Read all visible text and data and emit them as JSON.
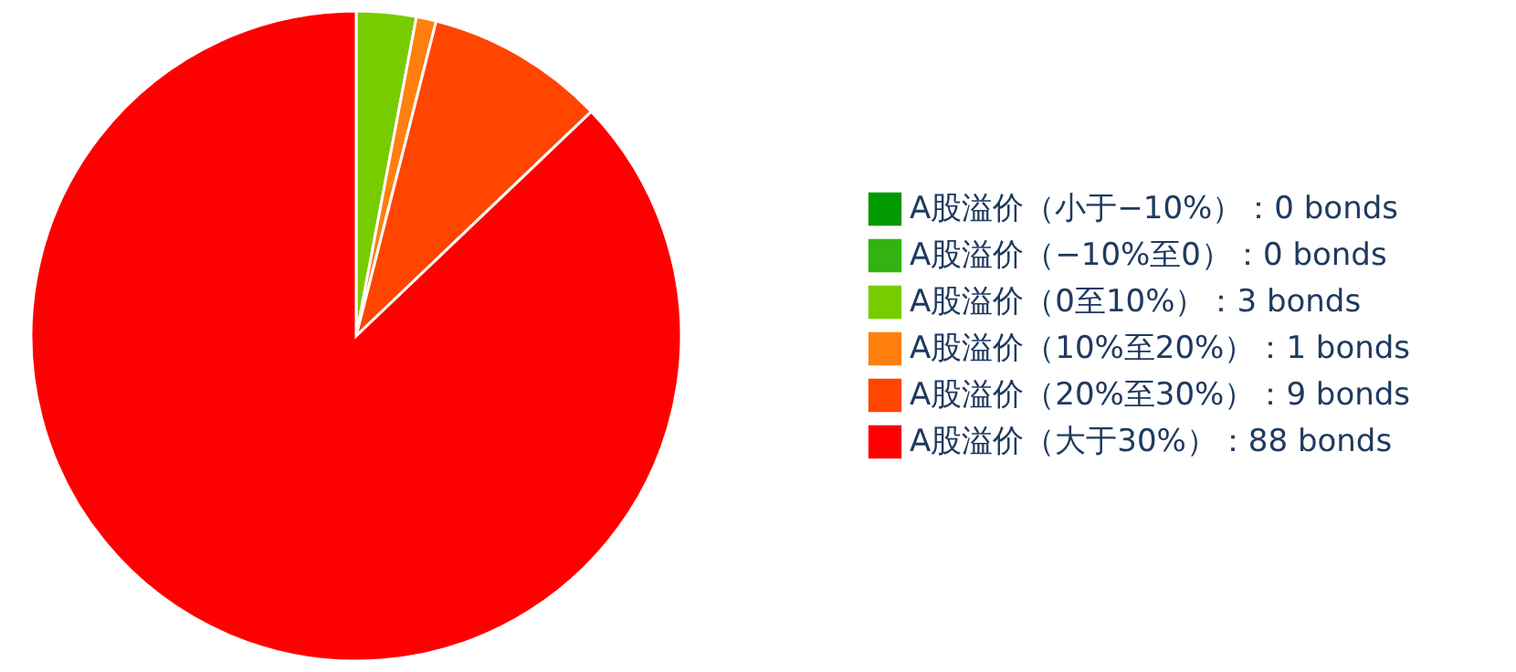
{
  "chart_data": {
    "type": "pie",
    "legend": "right",
    "categories": [
      "A股溢价（小于−10%）：0 bonds",
      "A股溢价（−10%至0）：0 bonds",
      "A股溢价（0至10%）：3 bonds",
      "A股溢价（10%至20%）：1 bonds",
      "A股溢价（20%至30%）：9 bonds",
      "A股溢价（大于30%）：88 bonds"
    ],
    "values": [
      0,
      0,
      3,
      1,
      9,
      88
    ],
    "colors": [
      "#009900",
      "#33b312",
      "#77cc00",
      "#ff7f0e",
      "#ff4500",
      "#ff0000"
    ]
  }
}
